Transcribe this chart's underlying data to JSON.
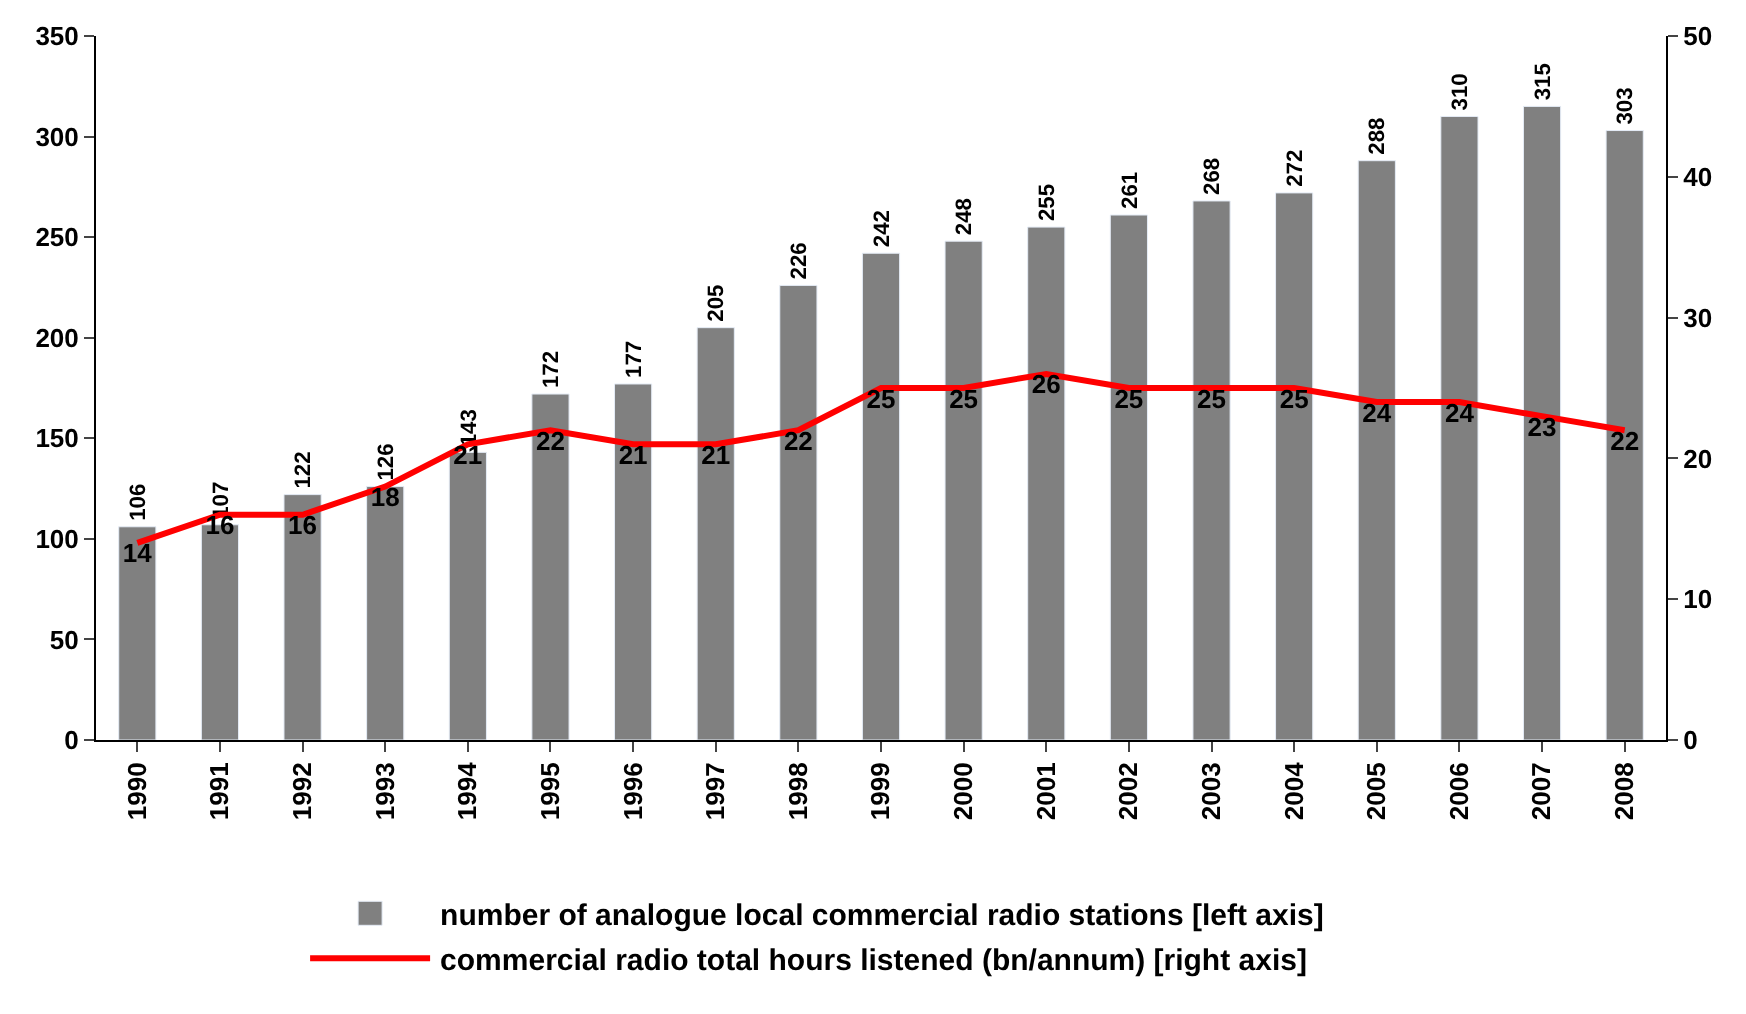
{
  "chart_data": {
    "type": "bar",
    "categories": [
      "1990",
      "1991",
      "1992",
      "1993",
      "1994",
      "1995",
      "1996",
      "1997",
      "1998",
      "1999",
      "2000",
      "2001",
      "2002",
      "2003",
      "2004",
      "2005",
      "2006",
      "2007",
      "2008"
    ],
    "series": [
      {
        "name": "number of analogue local commercial radio stations [left axis]",
        "color": "#808080",
        "values": [
          106,
          107,
          122,
          126,
          143,
          172,
          177,
          205,
          226,
          242,
          248,
          255,
          261,
          268,
          272,
          288,
          310,
          315,
          303
        ]
      },
      {
        "name": "commercial radio total hours listened (bn/annum) [right axis]",
        "type": "line",
        "axis": "y2",
        "color": "#ff0000",
        "values": [
          14,
          16,
          16,
          18,
          21,
          22,
          21,
          21,
          22,
          25,
          25,
          26,
          25,
          25,
          25,
          24,
          24,
          23,
          22
        ]
      }
    ],
    "ylim": [
      0,
      350
    ],
    "yticks": [
      0,
      50,
      100,
      150,
      200,
      250,
      300,
      350
    ],
    "y2lim": [
      0,
      50
    ],
    "y2ticks": [
      0,
      10,
      20,
      30,
      40,
      50
    ],
    "data_labels": true,
    "legend": "bottom",
    "marker": "none",
    "line_style": "solid"
  }
}
